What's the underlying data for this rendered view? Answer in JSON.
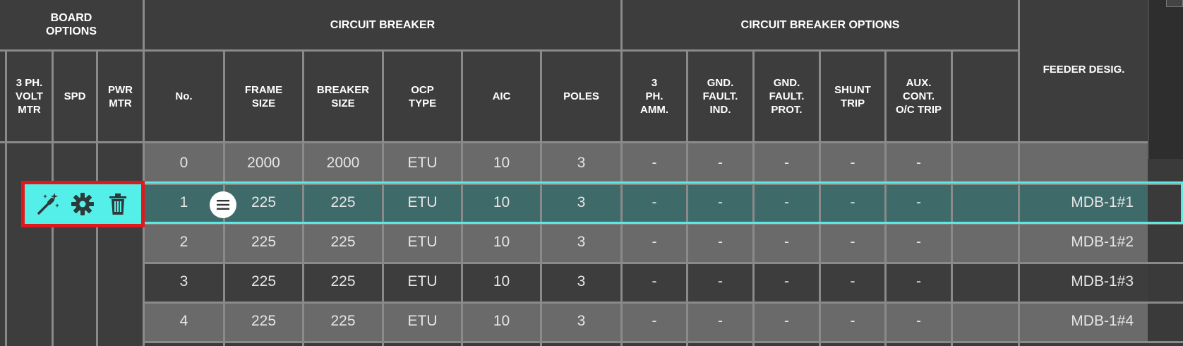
{
  "board_options": {
    "title": "BOARD\nOPTIONS",
    "columns": [
      "3 PH.\nVOLT\nMTR",
      "SPD",
      "PWR\nMTR"
    ]
  },
  "circuit_breaker": {
    "title": "CIRCUIT BREAKER",
    "columns": [
      "No.",
      "FRAME\nSIZE",
      "BREAKER\nSIZE",
      "OCP\nTYPE",
      "AIC",
      "POLES"
    ]
  },
  "circuit_breaker_options": {
    "title": "CIRCUIT BREAKER OPTIONS",
    "columns": [
      "3\nPH.\nAMM.",
      "GND.\nFAULT.\nIND.",
      "GND.\nFAULT.\nPROT.",
      "SHUNT\nTRIP",
      "AUX.\nCONT.\nO/C TRIP",
      ""
    ]
  },
  "feeder": {
    "title": "FEEDER DESIG."
  },
  "rows": [
    {
      "no": "0",
      "frame": "2000",
      "breaker": "2000",
      "ocp": "ETU",
      "aic": "10",
      "poles": "3",
      "amm": "-",
      "gfi": "-",
      "gfp": "-",
      "shunt": "-",
      "aux": "-",
      "feeder": ""
    },
    {
      "no": "1",
      "frame": "225",
      "breaker": "225",
      "ocp": "ETU",
      "aic": "10",
      "poles": "3",
      "amm": "-",
      "gfi": "-",
      "gfp": "-",
      "shunt": "-",
      "aux": "-",
      "feeder": "MDB-1#1"
    },
    {
      "no": "2",
      "frame": "225",
      "breaker": "225",
      "ocp": "ETU",
      "aic": "10",
      "poles": "3",
      "amm": "-",
      "gfi": "-",
      "gfp": "-",
      "shunt": "-",
      "aux": "-",
      "feeder": "MDB-1#2"
    },
    {
      "no": "3",
      "frame": "225",
      "breaker": "225",
      "ocp": "ETU",
      "aic": "10",
      "poles": "3",
      "amm": "-",
      "gfi": "-",
      "gfp": "-",
      "shunt": "-",
      "aux": "-",
      "feeder": "MDB-1#3"
    },
    {
      "no": "4",
      "frame": "225",
      "breaker": "225",
      "ocp": "ETU",
      "aic": "10",
      "poles": "3",
      "amm": "-",
      "gfi": "-",
      "gfp": "-",
      "shunt": "-",
      "aux": "-",
      "feeder": "MDB-1#4"
    }
  ],
  "selected_row": 1,
  "row_toolbar": {
    "icons": [
      "magic-wand-icon",
      "gear-icon",
      "trash-icon"
    ],
    "menu_icon": "hamburger-menu-icon"
  },
  "colors": {
    "selection": "#5de8e2",
    "toolbar_bg": "#55efea",
    "toolbar_border": "#e0181c",
    "row_light": "#6a6a6a",
    "row_dark": "#3d3d3d",
    "row_selected": "#3f6a6a"
  }
}
